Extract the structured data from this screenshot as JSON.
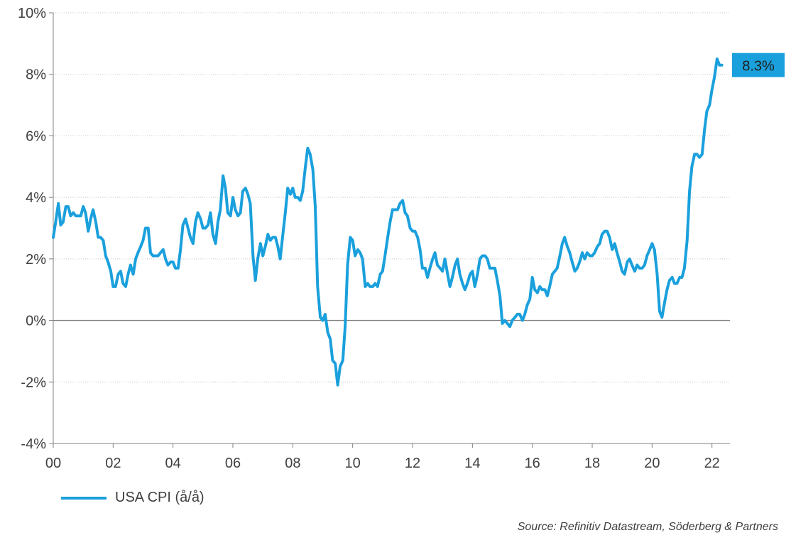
{
  "chart_data": {
    "type": "line",
    "title": "",
    "xlabel": "",
    "ylabel": "",
    "xlim": [
      2000.0,
      2022.6
    ],
    "ylim": [
      -4,
      10
    ],
    "x_ticks": [
      "00",
      "02",
      "04",
      "06",
      "08",
      "10",
      "12",
      "14",
      "16",
      "18",
      "20",
      "22"
    ],
    "y_ticks": [
      "-4%",
      "-2%",
      "0%",
      "2%",
      "4%",
      "6%",
      "8%",
      "10%"
    ],
    "grid": "horizontal-dotted",
    "legend": "bottom-left",
    "end_label": "8.3%",
    "color": "#1aa0dc",
    "label_bg": "#1aa0dc",
    "series": [
      {
        "name": "USA CPI (å/å)",
        "x": [
          2000.0,
          2000.08,
          2000.17,
          2000.25,
          2000.33,
          2000.42,
          2000.5,
          2000.58,
          2000.67,
          2000.75,
          2000.83,
          2000.92,
          2001.0,
          2001.08,
          2001.17,
          2001.25,
          2001.33,
          2001.42,
          2001.5,
          2001.58,
          2001.67,
          2001.75,
          2001.83,
          2001.92,
          2002.0,
          2002.08,
          2002.17,
          2002.25,
          2002.33,
          2002.42,
          2002.5,
          2002.58,
          2002.67,
          2002.75,
          2002.83,
          2002.92,
          2003.0,
          2003.08,
          2003.17,
          2003.25,
          2003.33,
          2003.42,
          2003.5,
          2003.58,
          2003.67,
          2003.75,
          2003.83,
          2003.92,
          2004.0,
          2004.08,
          2004.17,
          2004.25,
          2004.33,
          2004.42,
          2004.5,
          2004.58,
          2004.67,
          2004.75,
          2004.83,
          2004.92,
          2005.0,
          2005.08,
          2005.17,
          2005.25,
          2005.33,
          2005.42,
          2005.5,
          2005.58,
          2005.67,
          2005.75,
          2005.83,
          2005.92,
          2006.0,
          2006.08,
          2006.17,
          2006.25,
          2006.33,
          2006.42,
          2006.5,
          2006.58,
          2006.67,
          2006.75,
          2006.83,
          2006.92,
          2007.0,
          2007.08,
          2007.17,
          2007.25,
          2007.33,
          2007.42,
          2007.5,
          2007.58,
          2007.67,
          2007.75,
          2007.83,
          2007.92,
          2008.0,
          2008.08,
          2008.17,
          2008.25,
          2008.33,
          2008.42,
          2008.5,
          2008.58,
          2008.67,
          2008.75,
          2008.83,
          2008.92,
          2009.0,
          2009.08,
          2009.17,
          2009.25,
          2009.33,
          2009.42,
          2009.5,
          2009.58,
          2009.67,
          2009.75,
          2009.83,
          2009.92,
          2010.0,
          2010.08,
          2010.17,
          2010.25,
          2010.33,
          2010.42,
          2010.5,
          2010.58,
          2010.67,
          2010.75,
          2010.83,
          2010.92,
          2011.0,
          2011.08,
          2011.17,
          2011.25,
          2011.33,
          2011.42,
          2011.5,
          2011.58,
          2011.67,
          2011.75,
          2011.83,
          2011.92,
          2012.0,
          2012.08,
          2012.17,
          2012.25,
          2012.33,
          2012.42,
          2012.5,
          2012.58,
          2012.67,
          2012.75,
          2012.83,
          2012.92,
          2013.0,
          2013.08,
          2013.17,
          2013.25,
          2013.33,
          2013.42,
          2013.5,
          2013.58,
          2013.67,
          2013.75,
          2013.83,
          2013.92,
          2014.0,
          2014.08,
          2014.17,
          2014.25,
          2014.33,
          2014.42,
          2014.5,
          2014.58,
          2014.67,
          2014.75,
          2014.83,
          2014.92,
          2015.0,
          2015.08,
          2015.17,
          2015.25,
          2015.33,
          2015.42,
          2015.5,
          2015.58,
          2015.67,
          2015.75,
          2015.83,
          2015.92,
          2016.0,
          2016.08,
          2016.17,
          2016.25,
          2016.33,
          2016.42,
          2016.5,
          2016.58,
          2016.67,
          2016.75,
          2016.83,
          2016.92,
          2017.0,
          2017.08,
          2017.17,
          2017.25,
          2017.33,
          2017.42,
          2017.5,
          2017.58,
          2017.67,
          2017.75,
          2017.83,
          2017.92,
          2018.0,
          2018.08,
          2018.17,
          2018.25,
          2018.33,
          2018.42,
          2018.5,
          2018.58,
          2018.67,
          2018.75,
          2018.83,
          2018.92,
          2019.0,
          2019.08,
          2019.17,
          2019.25,
          2019.33,
          2019.42,
          2019.5,
          2019.58,
          2019.67,
          2019.75,
          2019.83,
          2019.92,
          2020.0,
          2020.08,
          2020.17,
          2020.25,
          2020.33,
          2020.42,
          2020.5,
          2020.58,
          2020.67,
          2020.75,
          2020.83,
          2020.92,
          2021.0,
          2021.08,
          2021.17,
          2021.25,
          2021.33,
          2021.42,
          2021.5,
          2021.58,
          2021.67,
          2021.75,
          2021.83,
          2021.92,
          2022.0,
          2022.08,
          2022.17,
          2022.25,
          2022.33
        ],
        "y": [
          2.7,
          3.2,
          3.8,
          3.1,
          3.2,
          3.7,
          3.7,
          3.4,
          3.5,
          3.4,
          3.4,
          3.4,
          3.7,
          3.5,
          2.9,
          3.3,
          3.6,
          3.2,
          2.7,
          2.7,
          2.6,
          2.1,
          1.9,
          1.6,
          1.1,
          1.1,
          1.5,
          1.6,
          1.2,
          1.1,
          1.5,
          1.8,
          1.5,
          2.0,
          2.2,
          2.4,
          2.6,
          3.0,
          3.0,
          2.2,
          2.1,
          2.1,
          2.1,
          2.2,
          2.3,
          2.0,
          1.8,
          1.9,
          1.9,
          1.7,
          1.7,
          2.3,
          3.1,
          3.3,
          3.0,
          2.7,
          2.5,
          3.2,
          3.5,
          3.3,
          3.0,
          3.0,
          3.1,
          3.5,
          2.8,
          2.5,
          3.2,
          3.6,
          4.7,
          4.3,
          3.5,
          3.4,
          4.0,
          3.6,
          3.4,
          3.5,
          4.2,
          4.3,
          4.1,
          3.8,
          2.1,
          1.3,
          2.0,
          2.5,
          2.1,
          2.4,
          2.8,
          2.6,
          2.7,
          2.7,
          2.4,
          2.0,
          2.8,
          3.5,
          4.3,
          4.1,
          4.3,
          4.0,
          4.0,
          3.9,
          4.2,
          5.0,
          5.6,
          5.4,
          4.9,
          3.7,
          1.1,
          0.1,
          0.0,
          0.2,
          -0.4,
          -0.6,
          -1.3,
          -1.4,
          -2.1,
          -1.5,
          -1.3,
          -0.2,
          1.8,
          2.7,
          2.6,
          2.1,
          2.3,
          2.2,
          2.0,
          1.1,
          1.2,
          1.1,
          1.1,
          1.2,
          1.1,
          1.5,
          1.6,
          2.1,
          2.7,
          3.2,
          3.6,
          3.6,
          3.6,
          3.8,
          3.9,
          3.5,
          3.4,
          3.0,
          2.9,
          2.9,
          2.7,
          2.3,
          1.7,
          1.7,
          1.4,
          1.7,
          2.0,
          2.2,
          1.8,
          1.7,
          1.6,
          2.0,
          1.5,
          1.1,
          1.4,
          1.8,
          2.0,
          1.5,
          1.2,
          1.0,
          1.2,
          1.5,
          1.6,
          1.1,
          1.5,
          2.0,
          2.1,
          2.1,
          2.0,
          1.7,
          1.7,
          1.7,
          1.3,
          0.8,
          -0.1,
          0.0,
          -0.1,
          -0.2,
          0.0,
          0.1,
          0.2,
          0.2,
          0.0,
          0.2,
          0.5,
          0.7,
          1.4,
          1.0,
          0.9,
          1.1,
          1.0,
          1.0,
          0.8,
          1.1,
          1.5,
          1.6,
          1.7,
          2.1,
          2.5,
          2.7,
          2.4,
          2.2,
          1.9,
          1.6,
          1.7,
          1.9,
          2.2,
          2.0,
          2.2,
          2.1,
          2.1,
          2.2,
          2.4,
          2.5,
          2.8,
          2.9,
          2.9,
          2.7,
          2.3,
          2.5,
          2.2,
          1.9,
          1.6,
          1.5,
          1.9,
          2.0,
          1.8,
          1.6,
          1.8,
          1.7,
          1.7,
          1.8,
          2.1,
          2.3,
          2.5,
          2.3,
          1.5,
          0.3,
          0.1,
          0.6,
          1.0,
          1.3,
          1.4,
          1.2,
          1.2,
          1.4,
          1.4,
          1.7,
          2.6,
          4.2,
          5.0,
          5.4,
          5.4,
          5.3,
          5.4,
          6.2,
          6.8,
          7.0,
          7.5,
          7.9,
          8.5,
          8.3,
          8.3
        ]
      }
    ]
  },
  "legend": {
    "label": "USA CPI (å/å)"
  },
  "source": "Source: Refinitiv Datastream, Söderberg & Partners"
}
